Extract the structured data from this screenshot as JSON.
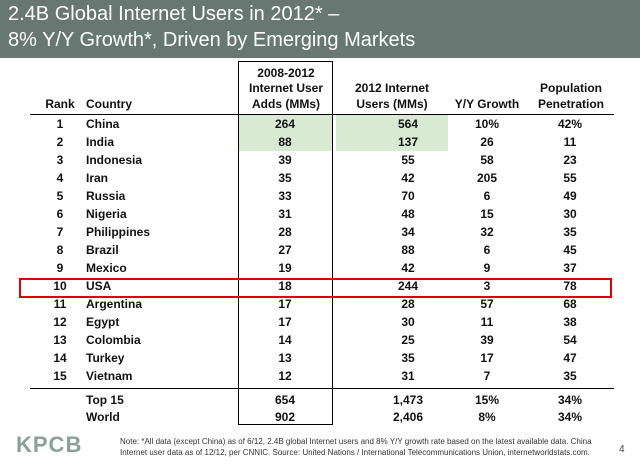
{
  "title": {
    "line1": "2.4B Global Internet Users in 2012* –",
    "line2": "8% Y/Y Growth*, Driven by Emerging Markets"
  },
  "headers": {
    "rank": "Rank",
    "country": "Country",
    "adds_1": "2008-2012",
    "adds_2": "Internet User",
    "adds_3": "Adds (MMs)",
    "users_1": "2012 Internet",
    "users_2": "Users (MMs)",
    "yoy": "Y/Y Growth",
    "pop_1": "Population",
    "pop_2": "Penetration"
  },
  "rows": [
    {
      "rank": "1",
      "country": "China",
      "adds": "264",
      "users": "564",
      "yoy": "10%",
      "pop": "42%"
    },
    {
      "rank": "2",
      "country": "India",
      "adds": "88",
      "users": "137",
      "yoy": "26",
      "pop": "11"
    },
    {
      "rank": "3",
      "country": "Indonesia",
      "adds": "39",
      "users": "55",
      "yoy": "58",
      "pop": "23"
    },
    {
      "rank": "4",
      "country": "Iran",
      "adds": "35",
      "users": "42",
      "yoy": "205",
      "pop": "55"
    },
    {
      "rank": "5",
      "country": "Russia",
      "adds": "33",
      "users": "70",
      "yoy": "6",
      "pop": "49"
    },
    {
      "rank": "6",
      "country": "Nigeria",
      "adds": "31",
      "users": "48",
      "yoy": "15",
      "pop": "30"
    },
    {
      "rank": "7",
      "country": "Philippines",
      "adds": "28",
      "users": "34",
      "yoy": "32",
      "pop": "35"
    },
    {
      "rank": "8",
      "country": "Brazil",
      "adds": "27",
      "users": "88",
      "yoy": "6",
      "pop": "45"
    },
    {
      "rank": "9",
      "country": "Mexico",
      "adds": "19",
      "users": "42",
      "yoy": "9",
      "pop": "37"
    },
    {
      "rank": "10",
      "country": "USA",
      "adds": "18",
      "users": "244",
      "yoy": "3",
      "pop": "78"
    },
    {
      "rank": "11",
      "country": "Argentina",
      "adds": "17",
      "users": "28",
      "yoy": "57",
      "pop": "68"
    },
    {
      "rank": "12",
      "country": "Egypt",
      "adds": "17",
      "users": "30",
      "yoy": "11",
      "pop": "38"
    },
    {
      "rank": "13",
      "country": "Colombia",
      "adds": "14",
      "users": "25",
      "yoy": "39",
      "pop": "54"
    },
    {
      "rank": "14",
      "country": "Turkey",
      "adds": "13",
      "users": "35",
      "yoy": "17",
      "pop": "47"
    },
    {
      "rank": "15",
      "country": "Vietnam",
      "adds": "12",
      "users": "31",
      "yoy": "7",
      "pop": "35"
    }
  ],
  "totals": [
    {
      "country": "Top 15",
      "adds": "654",
      "users": "1,473",
      "yoy": "15%",
      "pop": "34%"
    },
    {
      "country": "World",
      "adds": "902",
      "users": "2,406",
      "yoy": "8%",
      "pop": "34%"
    }
  ],
  "footer": {
    "logo": "KPCB",
    "note": "Note: *All data (except China) as of 6/12, 2.4B global Internet users and 8% Y/Y growth rate based on the latest available data. China Internet user data as of 12/12, per CNNIC. Source: United Nations / International Telecommunications Union, internetworldstats.com.",
    "page": "4"
  },
  "colors": {
    "title_bar": "#677771",
    "highlight": "#d9ead3",
    "usa_outline": "#e00000",
    "logo": "#8aa099"
  }
}
